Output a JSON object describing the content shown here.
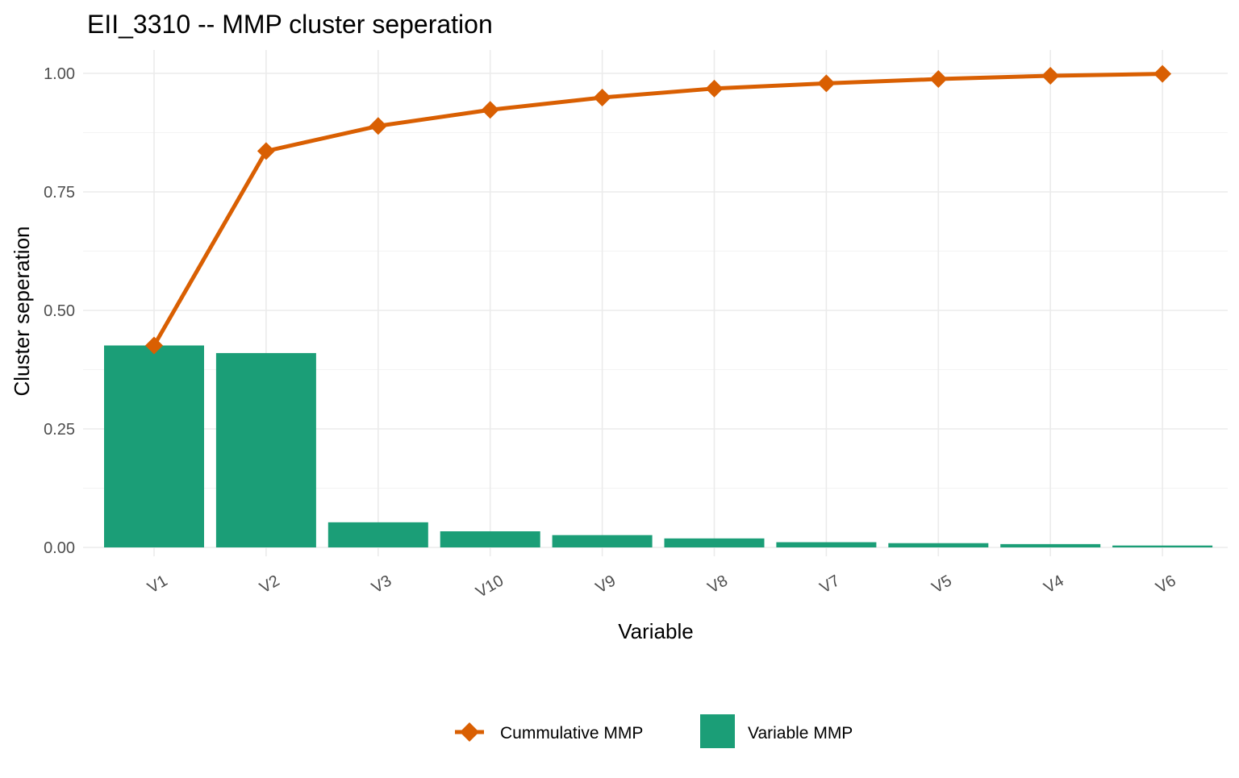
{
  "chart_data": {
    "type": "bar",
    "title": "EII_3310 -- MMP cluster seperation",
    "xlabel": "Variable",
    "ylabel": "Cluster seperation",
    "categories": [
      "V1",
      "V2",
      "V3",
      "V10",
      "V9",
      "V8",
      "V7",
      "V5",
      "V4",
      "V6"
    ],
    "ylim": [
      0,
      1.0
    ],
    "yticks": [
      "0.00",
      "0.25",
      "0.50",
      "0.75",
      "1.00"
    ],
    "ytick_values": [
      0,
      0.25,
      0.5,
      0.75,
      1.0
    ],
    "grid": true,
    "legend_position": "bottom",
    "series": [
      {
        "name": "Variable MMP",
        "type": "bar",
        "color": "#1b9e77",
        "values": [
          0.426,
          0.41,
          0.053,
          0.034,
          0.026,
          0.019,
          0.011,
          0.009,
          0.007,
          0.004
        ]
      },
      {
        "name": "Cummulative MMP",
        "type": "line",
        "marker": "diamond",
        "color": "#d95f02",
        "values": [
          0.426,
          0.836,
          0.889,
          0.923,
          0.949,
          0.968,
          0.979,
          0.988,
          0.995,
          0.999
        ]
      }
    ]
  }
}
